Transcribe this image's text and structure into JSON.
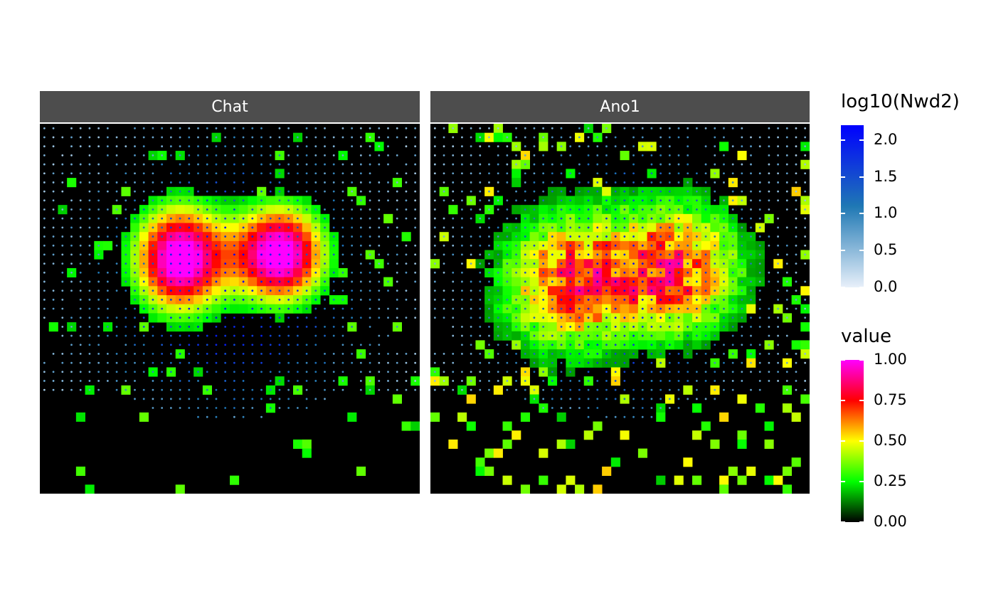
{
  "chart_data": {
    "type": "heatmap",
    "facets": [
      {
        "name": "Chat"
      },
      {
        "name": "Ano1"
      }
    ],
    "grid": {
      "cols": 42,
      "rows": 41
    },
    "legends": [
      {
        "title": "log10(Nwd2)",
        "kind": "points",
        "range": [
          0.0,
          2.2
        ],
        "ticks": [
          "0.0",
          "0.5",
          "1.0",
          "1.5",
          "2.0"
        ],
        "tick_values": [
          0.0,
          0.5,
          1.0,
          1.5,
          2.0
        ],
        "colors": [
          "#e8f0fa",
          "#1f78b4",
          "#0000ff"
        ]
      },
      {
        "title": "value",
        "kind": "tiles",
        "range": [
          0.0,
          1.0
        ],
        "ticks": [
          "0.00",
          "0.25",
          "0.50",
          "0.75",
          "1.00"
        ],
        "tick_values": [
          0.0,
          0.25,
          0.5,
          0.75,
          1.0
        ],
        "colors": [
          "#000000",
          "#00ff00",
          "#ffff00",
          "#ff0000",
          "#ff00ff"
        ]
      }
    ],
    "colors": {
      "panel_bg": "#000000",
      "strip_bg": "#4d4d4d",
      "strip_text": "#ffffff"
    }
  }
}
